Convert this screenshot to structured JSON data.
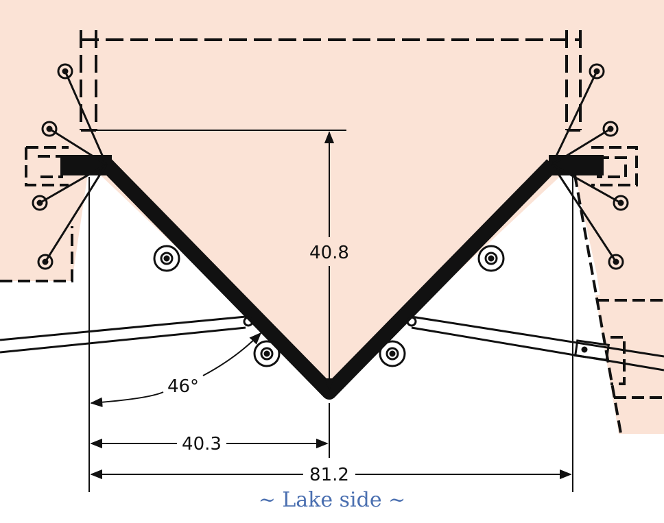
{
  "colors": {
    "background": "#ffffff",
    "land": "#fbe3d6",
    "line": "#111111",
    "caption": "#4a6fb0"
  },
  "dimensions": {
    "depth": "40.8",
    "half_width": "40.3",
    "full_width": "81.2",
    "angle": "46°"
  },
  "caption": "~ Lake side ~"
}
